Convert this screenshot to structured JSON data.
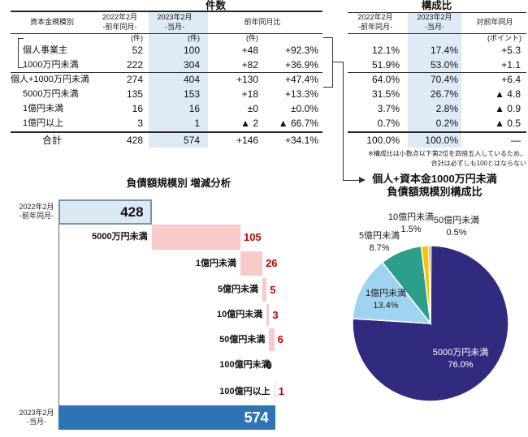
{
  "colors": {
    "highlight_column": "#DEEAF6",
    "start_bar_fill": "#DBE9F5",
    "start_bar_border": "#7491AE",
    "end_bar_fill": "#2E74B5",
    "step_bar_fill": "#F8CACA",
    "value_red": "#C00000",
    "rule_color": "#262626"
  },
  "cases_table": {
    "title": "件数",
    "header": {
      "label": "資本金規模別",
      "prev_l1": "2022年2月",
      "prev_l2": "-前年同月-",
      "curr_l1": "2023年2月",
      "curr_l2": "-当月-",
      "diff": "前年同月比"
    },
    "units": {
      "prev": "(件)",
      "curr": "(件)",
      "diff": "(件)"
    },
    "rows": [
      {
        "label": "個人事業主",
        "indent": true,
        "prev": "52",
        "curr": "100",
        "diff": "+48",
        "pct": "+92.3%"
      },
      {
        "label": "1000万円未満",
        "indent": true,
        "prev": "222",
        "curr": "304",
        "diff": "+82",
        "pct": "+36.9%"
      },
      {
        "label": "個人+1000万円未満",
        "indent": false,
        "prev": "274",
        "curr": "404",
        "diff": "+130",
        "pct": "+47.4%"
      },
      {
        "label": "5000万円未満",
        "indent": true,
        "prev": "135",
        "curr": "153",
        "diff": "+18",
        "pct": "+13.3%"
      },
      {
        "label": "1億円未満",
        "indent": true,
        "prev": "16",
        "curr": "16",
        "diff": "±0",
        "pct": "±0.0%"
      },
      {
        "label": "1億円以上",
        "indent": true,
        "prev": "3",
        "curr": "1",
        "diff": "▲ 2",
        "pct": "▲ 66.7%"
      }
    ],
    "total": {
      "label": "合計",
      "prev": "428",
      "curr": "574",
      "diff": "+146",
      "pct": "+34.1%"
    }
  },
  "ratio_table": {
    "title": "構成比",
    "header": {
      "prev_l1": "2022年2月",
      "prev_l2": "-前年同月-",
      "curr_l1": "2023年2月",
      "curr_l2": "-当月-",
      "diff": "対前年同月"
    },
    "unit": "(ポイント)",
    "rows": [
      {
        "prev": "12.1%",
        "curr": "17.4%",
        "diff": "+5.3"
      },
      {
        "prev": "51.9%",
        "curr": "53.0%",
        "diff": "+1.1"
      },
      {
        "prev": "64.0%",
        "curr": "70.4%",
        "diff": "+6.4"
      },
      {
        "prev": "31.5%",
        "curr": "26.7%",
        "diff": "▲ 4.8"
      },
      {
        "prev": "3.7%",
        "curr": "2.8%",
        "diff": "▲ 0.9"
      },
      {
        "prev": "0.7%",
        "curr": "0.2%",
        "diff": "▲ 0.5"
      }
    ],
    "total": {
      "prev": "100.0%",
      "curr": "100.0%",
      "diff": "—"
    },
    "footnote_l1": "※構成比は小数点以下第2位を四捨五入しているため、",
    "footnote_l2": "合計は必ずしも100とはならない"
  },
  "chart_data": [
    {
      "type": "bar",
      "subtype": "waterfall",
      "title": "負債額規模別 増減分析",
      "start": {
        "label_l1": "2022年2月",
        "label_l2": "-前年同月-",
        "value": 428
      },
      "steps": [
        {
          "category": "5000万円未満",
          "value": 105
        },
        {
          "category": "1億円未満",
          "value": 26
        },
        {
          "category": "5億円未満",
          "value": 5
        },
        {
          "category": "10億円未満",
          "value": 3
        },
        {
          "category": "50億円未満",
          "value": 6
        },
        {
          "category": "100億円未満",
          "value": 0
        },
        {
          "category": "100億円以上",
          "value": 1
        }
      ],
      "end": {
        "label_l1": "2023年2月",
        "label_l2": "-当月-",
        "value": 574
      },
      "axis_min": 318,
      "legend": "off",
      "grid": "off"
    },
    {
      "type": "pie",
      "title_l1": "個人+資本金1000万円未満",
      "title_l2": "負債額規模別構成比",
      "start_angle_deg": 0,
      "direction": "clockwise",
      "slices": [
        {
          "label": "5000万円未満",
          "value": 76.0,
          "display": "76.0%",
          "color": "#312B80",
          "label_inside": true,
          "label_color": "#FFFFFF"
        },
        {
          "label": "1億円未満",
          "value": 13.4,
          "display": "13.4%",
          "color": "#9FD3EF",
          "label_inside": true,
          "label_color": "#1A1A1A"
        },
        {
          "label": "5億円未満",
          "value": 8.7,
          "display": "8.7%",
          "color": "#2E9E8C",
          "label_inside": false,
          "label_color": "#1A1A1A"
        },
        {
          "label": "10億円未満",
          "value": 1.5,
          "display": "1.5%",
          "color": "#FFC000",
          "label_inside": false,
          "label_color": "#1A1A1A"
        },
        {
          "label": "50億円未満",
          "value": 0.5,
          "display": "0.5%",
          "color": "#BF8F00",
          "label_inside": false,
          "label_color": "#1A1A1A"
        }
      ]
    }
  ]
}
